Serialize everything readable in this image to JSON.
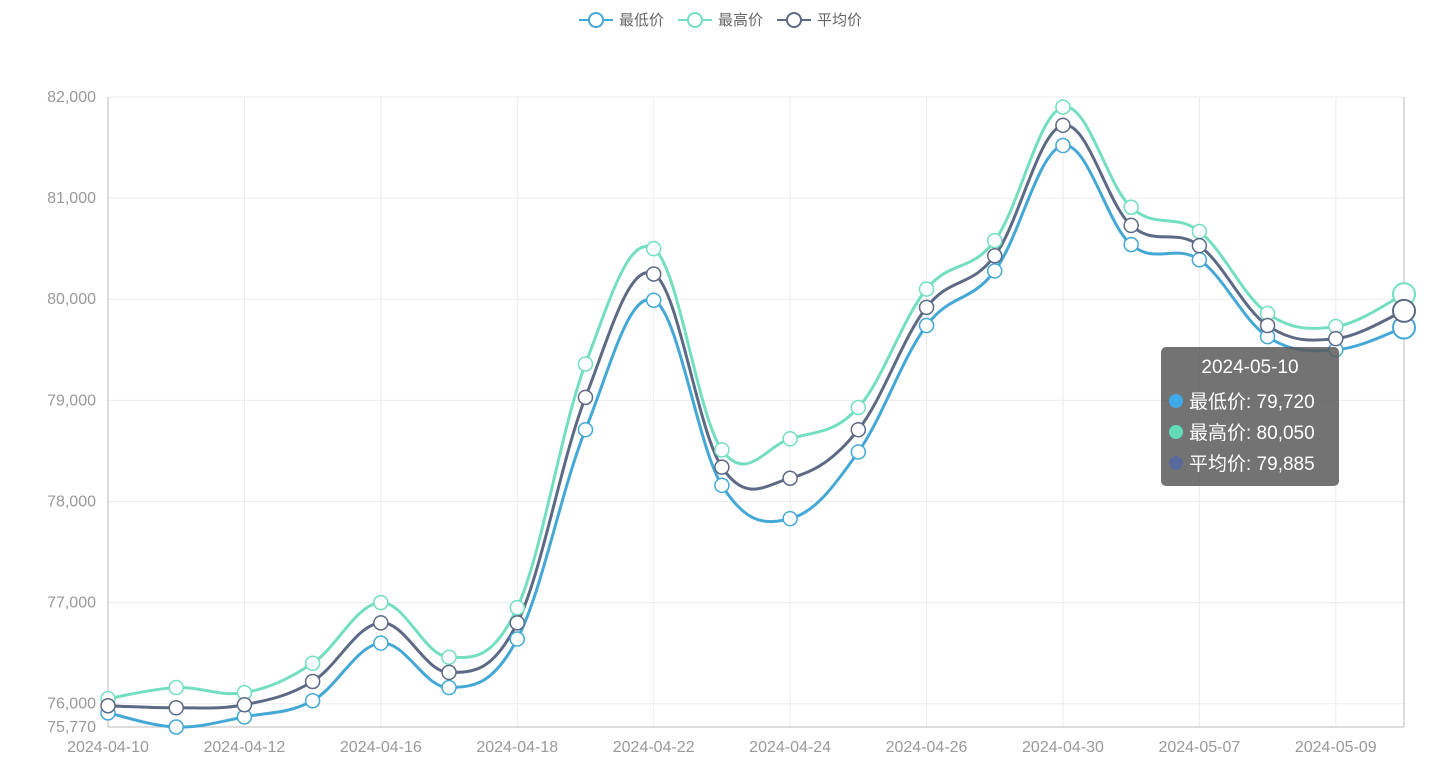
{
  "legend": [
    {
      "name": "最低价",
      "color": "#44a8d6"
    },
    {
      "name": "最高价",
      "color": "#73dfc0"
    },
    {
      "name": "平均价",
      "color": "#5d6a86"
    }
  ],
  "tooltip": {
    "title": "2024-05-10",
    "rows": [
      {
        "label": "最低价: 79,720",
        "color": "#3fa9ea"
      },
      {
        "label": "最高价: 80,050",
        "color": "#5fdcb6"
      },
      {
        "label": "平均价: 79,885",
        "color": "#5b6a9e"
      }
    ]
  },
  "chart_data": {
    "type": "line",
    "x": [
      "2024-04-10",
      "2024-04-11",
      "2024-04-12",
      "2024-04-14",
      "2024-04-16",
      "2024-04-17",
      "2024-04-18",
      "2024-04-19",
      "2024-04-22",
      "2024-04-23",
      "2024-04-24",
      "2024-04-25",
      "2024-04-26",
      "2024-04-28",
      "2024-04-30",
      "2024-05-06",
      "2024-05-07",
      "2024-05-08",
      "2024-05-09",
      "2024-05-10"
    ],
    "xticks": [
      "2024-04-10",
      "2024-04-12",
      "2024-04-16",
      "2024-04-18",
      "2024-04-22",
      "2024-04-24",
      "2024-04-26",
      "2024-04-30",
      "2024-05-07",
      "2024-05-09"
    ],
    "yticks": [
      75770,
      76000,
      77000,
      78000,
      79000,
      80000,
      81000,
      82000
    ],
    "yticklabels": [
      "75,770",
      "76,000",
      "77,000",
      "78,000",
      "79,000",
      "80,000",
      "81,000",
      "82,000"
    ],
    "ylim": [
      75770,
      82000
    ],
    "grid": true,
    "legend_position": "top-center",
    "series": [
      {
        "name": "最低价",
        "color": "#44a8d6",
        "values": [
          75910,
          75770,
          75870,
          76030,
          76600,
          76160,
          76640,
          78710,
          79990,
          78160,
          77830,
          78490,
          79740,
          80280,
          81520,
          80540,
          80390,
          79630,
          79500,
          79720
        ]
      },
      {
        "name": "最高价",
        "color": "#73dfc0",
        "values": [
          76050,
          76160,
          76110,
          76400,
          77000,
          76460,
          76950,
          79360,
          80500,
          78510,
          78620,
          78930,
          80100,
          80580,
          81900,
          80910,
          80670,
          79860,
          79730,
          80050
        ]
      },
      {
        "name": "平均价",
        "color": "#5d6a86",
        "values": [
          75980,
          75960,
          75990,
          76220,
          76800,
          76310,
          76800,
          79030,
          80250,
          78340,
          78230,
          78710,
          79920,
          80430,
          81720,
          80730,
          80530,
          79740,
          79610,
          79885
        ]
      }
    ]
  }
}
